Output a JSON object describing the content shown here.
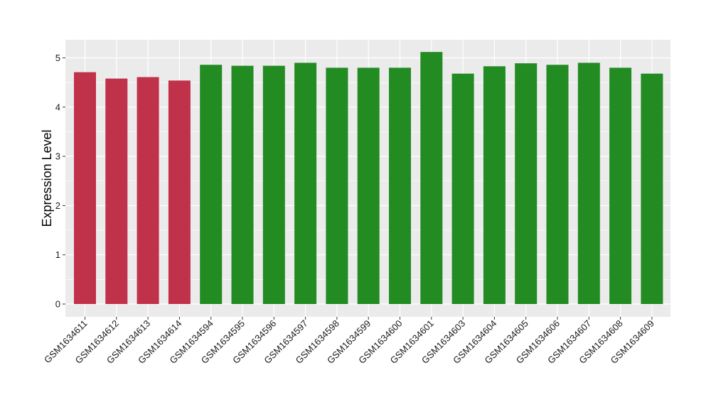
{
  "chart_data": {
    "type": "bar",
    "title": "",
    "xlabel": "",
    "ylabel": "Expression Level",
    "ylim": [
      0,
      5.4
    ],
    "yticks": [
      0,
      1,
      2,
      3,
      4,
      5
    ],
    "grid": true,
    "legend": "none",
    "categories": [
      "GSM1634611",
      "GSM1634612",
      "GSM1634613",
      "GSM1634614",
      "GSM1634594",
      "GSM1634595",
      "GSM1634596",
      "GSM1634597",
      "GSM1634598",
      "GSM1634599",
      "GSM1634600",
      "GSM1634601",
      "GSM1634603",
      "GSM1634604",
      "GSM1634605",
      "GSM1634606",
      "GSM1634607",
      "GSM1634608",
      "GSM1634609"
    ],
    "values": [
      4.71,
      4.58,
      4.61,
      4.54,
      4.86,
      4.84,
      4.84,
      4.9,
      4.8,
      4.8,
      4.8,
      5.12,
      4.68,
      4.83,
      4.89,
      4.86,
      4.9,
      4.8,
      4.68
    ],
    "bar_colors": [
      "#c0314a",
      "#c0314a",
      "#c0314a",
      "#c0314a",
      "#228b22",
      "#228b22",
      "#228b22",
      "#228b22",
      "#228b22",
      "#228b22",
      "#228b22",
      "#228b22",
      "#228b22",
      "#228b22",
      "#228b22",
      "#228b22",
      "#228b22",
      "#228b22",
      "#228b22"
    ],
    "panel_background": "#ebebeb",
    "gridline_color": "#ffffff"
  }
}
